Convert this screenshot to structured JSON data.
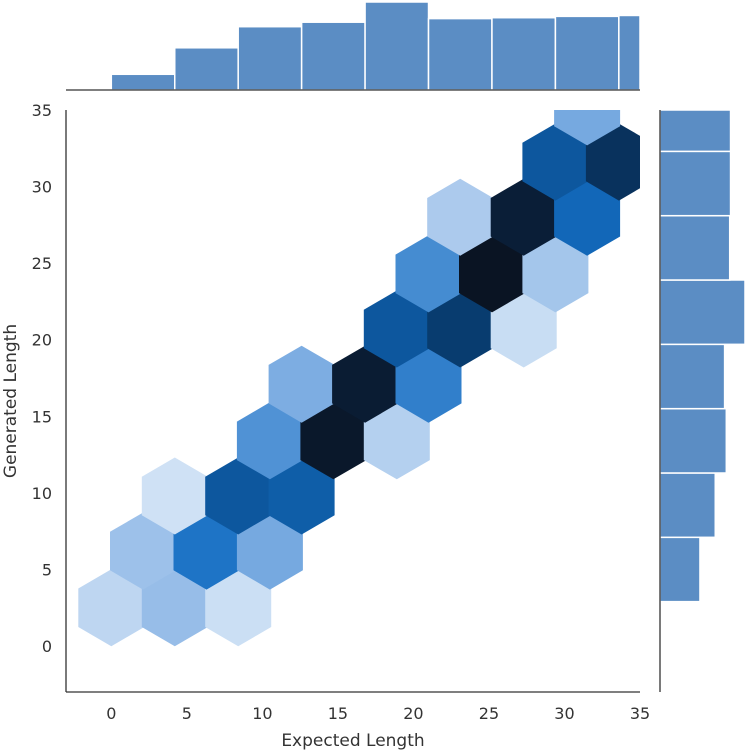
{
  "chart_data": {
    "type": "hexbin",
    "xlabel": "Expected Length",
    "ylabel": "Generated Length",
    "xlim": [
      -3,
      35
    ],
    "ylim": [
      -3,
      35
    ],
    "xticks": [
      "0",
      "5",
      "10",
      "15",
      "20",
      "25",
      "30",
      "35"
    ],
    "yticks": [
      "0",
      "5",
      "10",
      "15",
      "20",
      "25",
      "30",
      "35"
    ],
    "hexbins": [
      {
        "x": 0,
        "y": 2.5,
        "count": 10
      },
      {
        "x": 4.2,
        "y": 2.5,
        "count": 35
      },
      {
        "x": 8.4,
        "y": 2.5,
        "count": 5
      },
      {
        "x": 2.1,
        "y": 6.2,
        "count": 30
      },
      {
        "x": 6.3,
        "y": 6.2,
        "count": 140
      },
      {
        "x": 10.5,
        "y": 6.2,
        "count": 60
      },
      {
        "x": 4.2,
        "y": 9.8,
        "count": 4
      },
      {
        "x": 8.4,
        "y": 9.8,
        "count": 220
      },
      {
        "x": 12.6,
        "y": 9.8,
        "count": 200
      },
      {
        "x": 10.5,
        "y": 13.4,
        "count": 90
      },
      {
        "x": 14.7,
        "y": 13.4,
        "count": 480
      },
      {
        "x": 18.9,
        "y": 13.4,
        "count": 15
      },
      {
        "x": 12.6,
        "y": 17.1,
        "count": 55
      },
      {
        "x": 16.8,
        "y": 17.1,
        "count": 460
      },
      {
        "x": 21.0,
        "y": 17.1,
        "count": 120
      },
      {
        "x": 18.9,
        "y": 20.7,
        "count": 220
      },
      {
        "x": 23.1,
        "y": 20.7,
        "count": 320
      },
      {
        "x": 27.3,
        "y": 20.7,
        "count": 6
      },
      {
        "x": 21.0,
        "y": 24.3,
        "count": 100
      },
      {
        "x": 25.2,
        "y": 24.3,
        "count": 500
      },
      {
        "x": 29.4,
        "y": 24.3,
        "count": 25
      },
      {
        "x": 23.1,
        "y": 28.0,
        "count": 20
      },
      {
        "x": 27.3,
        "y": 28.0,
        "count": 450
      },
      {
        "x": 31.5,
        "y": 28.0,
        "count": 170
      },
      {
        "x": 29.4,
        "y": 31.6,
        "count": 220
      },
      {
        "x": 33.6,
        "y": 31.6,
        "count": 360
      },
      {
        "x": 31.5,
        "y": 35.2,
        "count": 60
      }
    ],
    "marginal_x": {
      "edges": [
        -3,
        0,
        4.2,
        8.4,
        12.6,
        16.8,
        21.0,
        25.2,
        29.4,
        33.6,
        35
      ],
      "counts": [
        0,
        175,
        470,
        705,
        755,
        980,
        795,
        805,
        820,
        830
      ]
    },
    "marginal_y": {
      "edges": [
        2.9,
        7.1,
        11.3,
        15.5,
        19.7,
        23.9,
        28.1,
        32.3,
        36.5
      ],
      "counts": [
        470,
        650,
        780,
        760,
        1000,
        820,
        830,
        830
      ]
    }
  }
}
